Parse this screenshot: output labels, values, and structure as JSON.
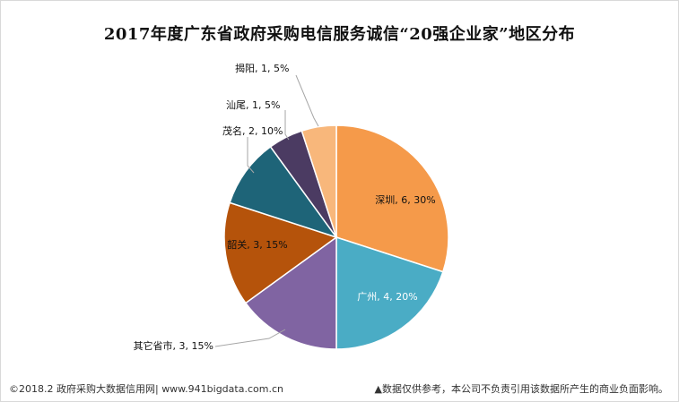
{
  "footer": {
    "left": "©2018.2 政府采购大数据信用网| www.941bigdata.com.cn",
    "right": "▲数据仅供参考，本公司不负责引用该数据所产生的商业负面影响。"
  },
  "chart_data": {
    "type": "pie",
    "title": "2017年度广东省政府采购电信服务诚信“20强企业家”地区分布",
    "slices": [
      {
        "name": "深圳",
        "value": 6,
        "percent": 30,
        "label": "深圳, 6, 30%",
        "color": "#f59a4a"
      },
      {
        "name": "广州",
        "value": 4,
        "percent": 20,
        "label": "广州, 4, 20%",
        "color": "#4aacc5"
      },
      {
        "name": "其它省市",
        "value": 3,
        "percent": 15,
        "label": "其它省市, 3, 15%",
        "color": "#8064a2"
      },
      {
        "name": "韶关",
        "value": 3,
        "percent": 15,
        "label": "韶关, 3, 15%",
        "color": "#b5530b"
      },
      {
        "name": "茂名",
        "value": 2,
        "percent": 10,
        "label": "茂名, 2, 10%",
        "color": "#1e6478"
      },
      {
        "name": "汕尾",
        "value": 1,
        "percent": 5,
        "label": "汕尾, 1, 5%",
        "color": "#4b3b62"
      },
      {
        "name": "揭阳",
        "value": 1,
        "percent": 5,
        "label": "揭阳, 1, 5%",
        "color": "#f8b77b"
      }
    ]
  }
}
